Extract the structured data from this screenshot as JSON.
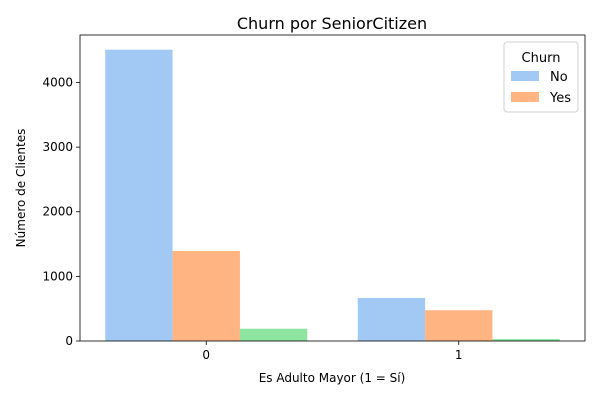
{
  "chart_data": {
    "type": "bar",
    "title": "Churn por SeniorCitizen",
    "xlabel": "Es Adulto Mayor (1 = Sí)",
    "ylabel": "Número de Clientes",
    "categories": [
      "0",
      "1"
    ],
    "ylim": [
      0,
      4735
    ],
    "yticks": [
      0,
      1000,
      2000,
      3000,
      4000
    ],
    "grid": false,
    "series": [
      {
        "name": "No",
        "color": "#a1c9f4",
        "values": [
          4508,
          666
        ]
      },
      {
        "name": "Yes",
        "color": "#ffb482",
        "values": [
          1393,
          476
        ]
      },
      {
        "name": "",
        "color": "#8de5a1",
        "values": [
          190,
          30
        ]
      }
    ],
    "legend": {
      "title": "Churn",
      "placement": "top-right",
      "entries": [
        "No",
        "Yes"
      ]
    }
  }
}
